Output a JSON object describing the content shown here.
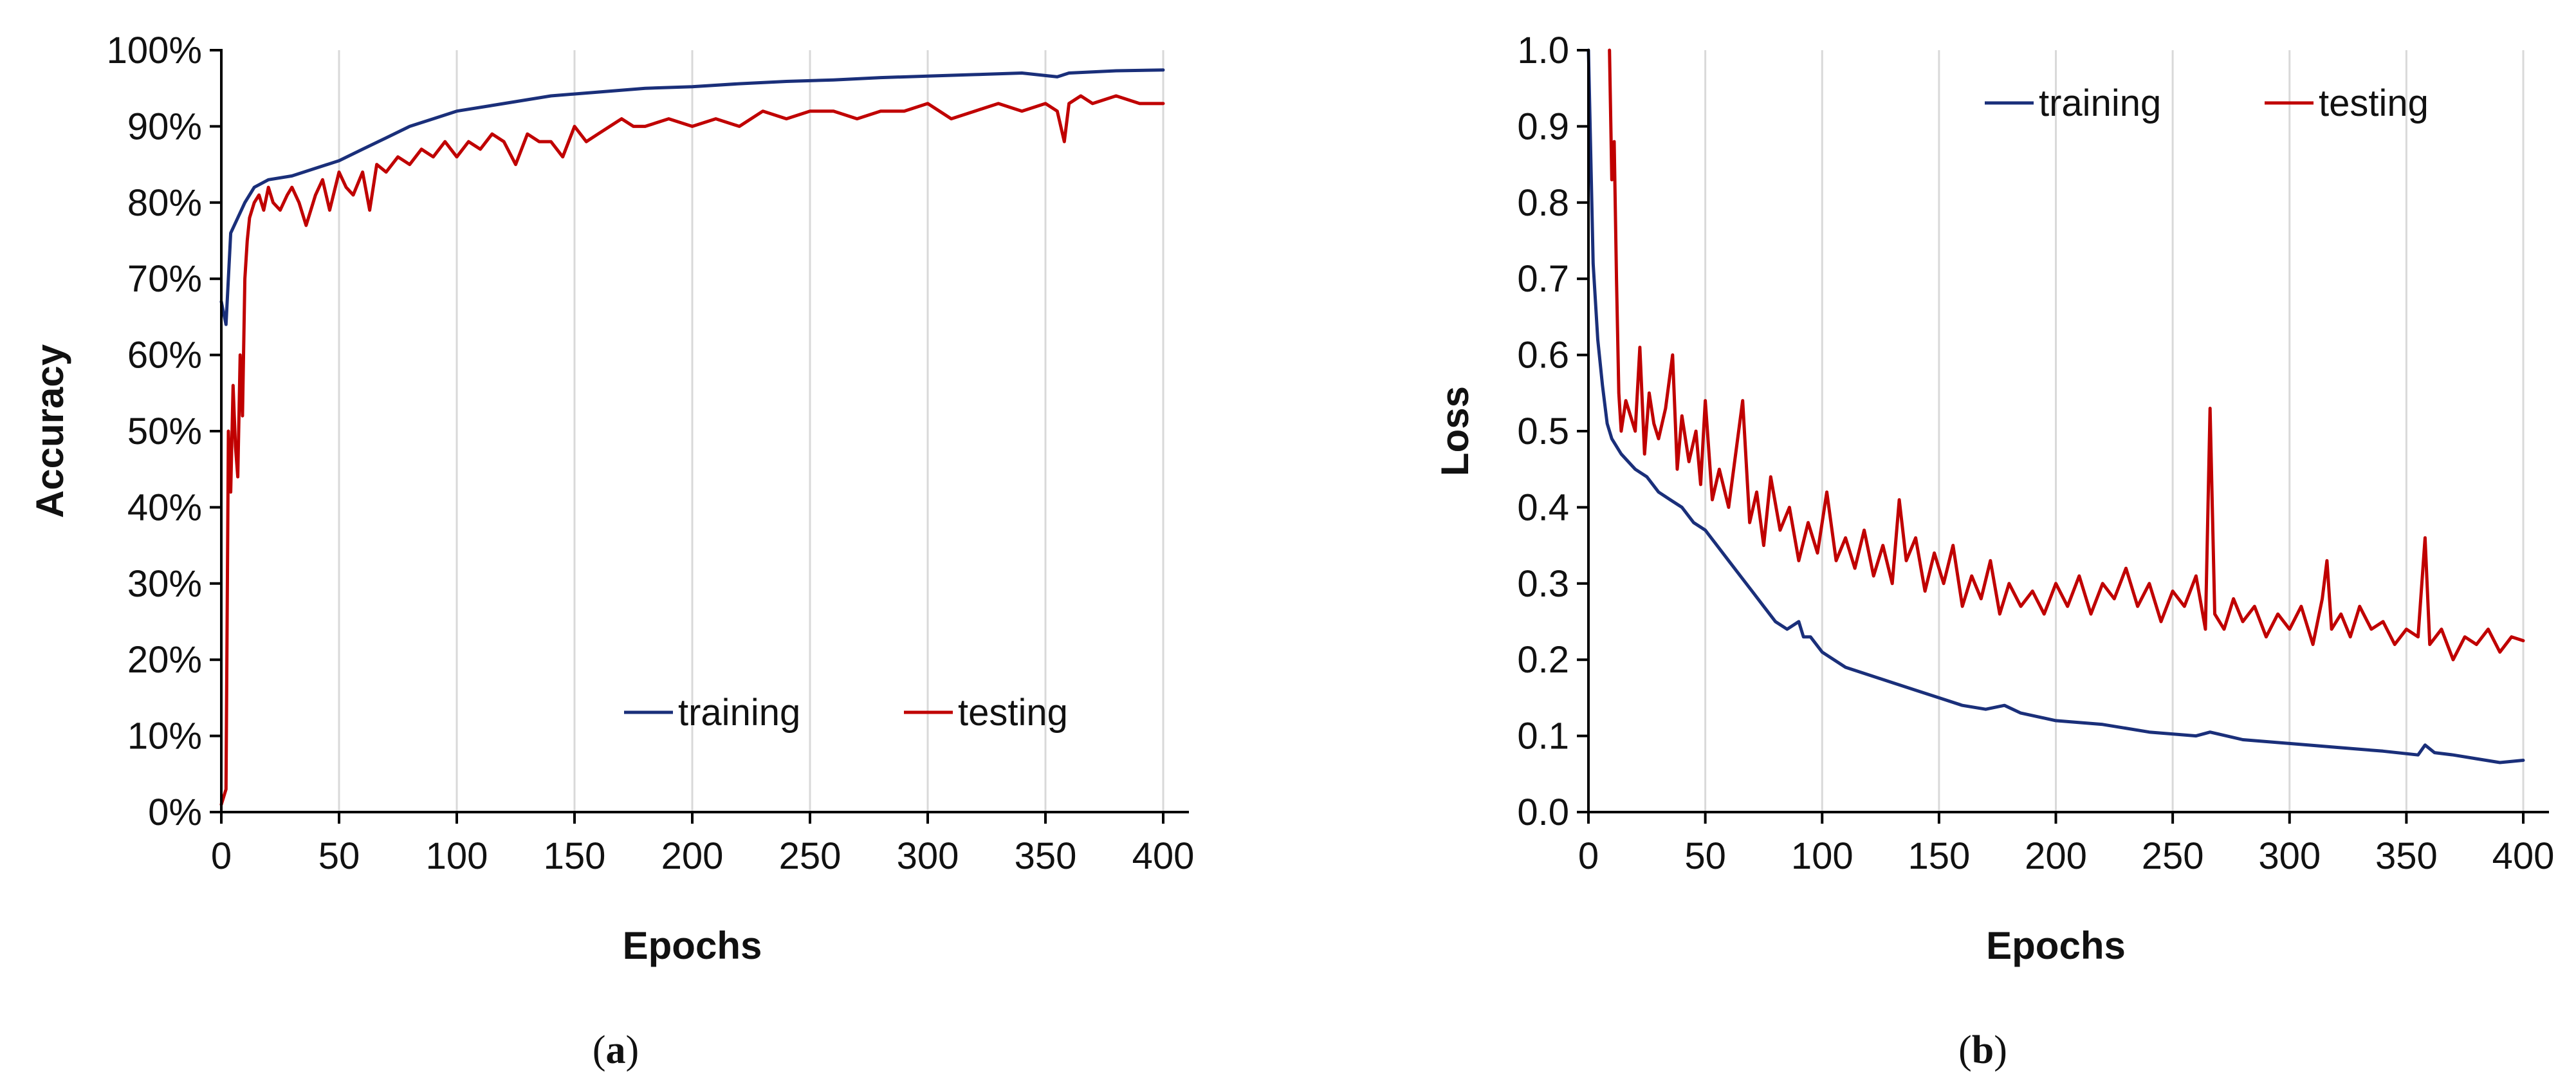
{
  "chart_data": [
    {
      "type": "line",
      "caption": "(a)",
      "caption_letter": "a",
      "xlabel": "Epochs",
      "ylabel": "Accuracy",
      "xlim": [
        0,
        400
      ],
      "ylim": [
        0,
        100
      ],
      "x_ticks": [
        "0",
        "50",
        "100",
        "150",
        "200",
        "250",
        "300",
        "350",
        "400"
      ],
      "y_ticks": [
        "0%",
        "10%",
        "20%",
        "30%",
        "40%",
        "50%",
        "60%",
        "70%",
        "80%",
        "90%",
        "100%"
      ],
      "grid": "vertical",
      "legend_position": "bottom-right",
      "series": [
        {
          "name": "training",
          "color": "#1a2f7a",
          "x": [
            0,
            2,
            4,
            7,
            10,
            14,
            20,
            30,
            40,
            50,
            60,
            70,
            80,
            90,
            100,
            120,
            140,
            160,
            180,
            200,
            220,
            240,
            260,
            280,
            300,
            320,
            340,
            355,
            360,
            380,
            400
          ],
          "y": [
            67,
            64,
            76,
            78,
            80,
            82,
            83,
            83.5,
            84.5,
            85.5,
            87,
            88.5,
            90,
            91,
            92,
            93,
            94,
            94.5,
            95,
            95.2,
            95.6,
            95.9,
            96.1,
            96.4,
            96.6,
            96.8,
            97.0,
            96.5,
            97.0,
            97.3,
            97.4
          ]
        },
        {
          "name": "testing",
          "color": "#c00000",
          "x": [
            0,
            1,
            2,
            3,
            4,
            5,
            6,
            7,
            8,
            9,
            10,
            11,
            12,
            14,
            16,
            18,
            20,
            22,
            25,
            28,
            30,
            33,
            36,
            40,
            43,
            46,
            50,
            53,
            56,
            60,
            63,
            66,
            70,
            75,
            80,
            85,
            90,
            95,
            100,
            105,
            110,
            115,
            120,
            125,
            130,
            135,
            140,
            145,
            150,
            155,
            160,
            165,
            170,
            175,
            180,
            190,
            200,
            210,
            220,
            230,
            240,
            250,
            260,
            270,
            280,
            290,
            300,
            310,
            320,
            330,
            340,
            350,
            355,
            358,
            360,
            365,
            370,
            380,
            390,
            400
          ],
          "y": [
            1,
            2,
            3,
            50,
            42,
            56,
            48,
            44,
            60,
            52,
            70,
            75,
            78,
            80,
            81,
            79,
            82,
            80,
            79,
            81,
            82,
            80,
            77,
            81,
            83,
            79,
            84,
            82,
            81,
            84,
            79,
            85,
            84,
            86,
            85,
            87,
            86,
            88,
            86,
            88,
            87,
            89,
            88,
            85,
            89,
            88,
            88,
            86,
            90,
            88,
            89,
            90,
            91,
            90,
            90,
            91,
            90,
            91,
            90,
            92,
            91,
            92,
            92,
            91,
            92,
            92,
            93,
            91,
            92,
            93,
            92,
            93,
            92,
            88,
            93,
            94,
            93,
            94,
            93,
            93
          ]
        }
      ]
    },
    {
      "type": "line",
      "caption": "(b)",
      "caption_letter": "b",
      "xlabel": "Epochs",
      "ylabel": "Loss",
      "xlim": [
        0,
        400
      ],
      "ylim": [
        0,
        1
      ],
      "x_ticks": [
        "0",
        "50",
        "100",
        "150",
        "200",
        "250",
        "300",
        "350",
        "400"
      ],
      "y_ticks": [
        "0.0",
        "0.1",
        "0.2",
        "0.3",
        "0.4",
        "0.5",
        "0.6",
        "0.7",
        "0.8",
        "0.9",
        "1.0"
      ],
      "grid": "vertical",
      "legend_position": "top-right",
      "series": [
        {
          "name": "training",
          "color": "#1a2f7a",
          "x": [
            0,
            2,
            4,
            6,
            8,
            10,
            14,
            20,
            25,
            30,
            35,
            40,
            45,
            50,
            55,
            60,
            65,
            70,
            75,
            80,
            85,
            90,
            92,
            95,
            100,
            110,
            120,
            130,
            140,
            150,
            160,
            170,
            178,
            185,
            200,
            220,
            240,
            260,
            266,
            280,
            300,
            320,
            340,
            355,
            358,
            362,
            370,
            380,
            390,
            400
          ],
          "y": [
            1.0,
            0.72,
            0.62,
            0.56,
            0.51,
            0.49,
            0.47,
            0.45,
            0.44,
            0.42,
            0.41,
            0.4,
            0.38,
            0.37,
            0.35,
            0.33,
            0.31,
            0.29,
            0.27,
            0.25,
            0.24,
            0.25,
            0.23,
            0.23,
            0.21,
            0.19,
            0.18,
            0.17,
            0.16,
            0.15,
            0.14,
            0.135,
            0.14,
            0.13,
            0.12,
            0.115,
            0.105,
            0.1,
            0.105,
            0.095,
            0.09,
            0.085,
            0.08,
            0.075,
            0.088,
            0.078,
            0.075,
            0.07,
            0.065,
            0.068
          ]
        },
        {
          "name": "testing",
          "color": "#c00000",
          "x": [
            9,
            10,
            11,
            12,
            13,
            14,
            16,
            18,
            20,
            22,
            24,
            26,
            28,
            30,
            33,
            36,
            38,
            40,
            43,
            46,
            48,
            50,
            53,
            56,
            60,
            63,
            66,
            69,
            72,
            75,
            78,
            82,
            86,
            90,
            94,
            98,
            102,
            106,
            110,
            114,
            118,
            122,
            126,
            130,
            133,
            136,
            140,
            144,
            148,
            152,
            156,
            160,
            164,
            168,
            172,
            176,
            180,
            185,
            190,
            195,
            200,
            205,
            210,
            215,
            220,
            225,
            230,
            235,
            240,
            245,
            250,
            255,
            260,
            264,
            266,
            268,
            272,
            276,
            280,
            285,
            290,
            295,
            300,
            305,
            310,
            314,
            316,
            318,
            322,
            326,
            330,
            335,
            340,
            345,
            350,
            355,
            358,
            360,
            365,
            370,
            375,
            380,
            385,
            390,
            395,
            400
          ],
          "y": [
            1.0,
            0.83,
            0.88,
            0.7,
            0.55,
            0.5,
            0.54,
            0.52,
            0.5,
            0.61,
            0.47,
            0.55,
            0.51,
            0.49,
            0.53,
            0.6,
            0.45,
            0.52,
            0.46,
            0.5,
            0.43,
            0.54,
            0.41,
            0.45,
            0.4,
            0.47,
            0.54,
            0.38,
            0.42,
            0.35,
            0.44,
            0.37,
            0.4,
            0.33,
            0.38,
            0.34,
            0.42,
            0.33,
            0.36,
            0.32,
            0.37,
            0.31,
            0.35,
            0.3,
            0.41,
            0.33,
            0.36,
            0.29,
            0.34,
            0.3,
            0.35,
            0.27,
            0.31,
            0.28,
            0.33,
            0.26,
            0.3,
            0.27,
            0.29,
            0.26,
            0.3,
            0.27,
            0.31,
            0.26,
            0.3,
            0.28,
            0.32,
            0.27,
            0.3,
            0.25,
            0.29,
            0.27,
            0.31,
            0.24,
            0.53,
            0.26,
            0.24,
            0.28,
            0.25,
            0.27,
            0.23,
            0.26,
            0.24,
            0.27,
            0.22,
            0.28,
            0.33,
            0.24,
            0.26,
            0.23,
            0.27,
            0.24,
            0.25,
            0.22,
            0.24,
            0.23,
            0.36,
            0.22,
            0.24,
            0.2,
            0.23,
            0.22,
            0.24,
            0.21,
            0.23,
            0.225
          ]
        }
      ]
    }
  ]
}
